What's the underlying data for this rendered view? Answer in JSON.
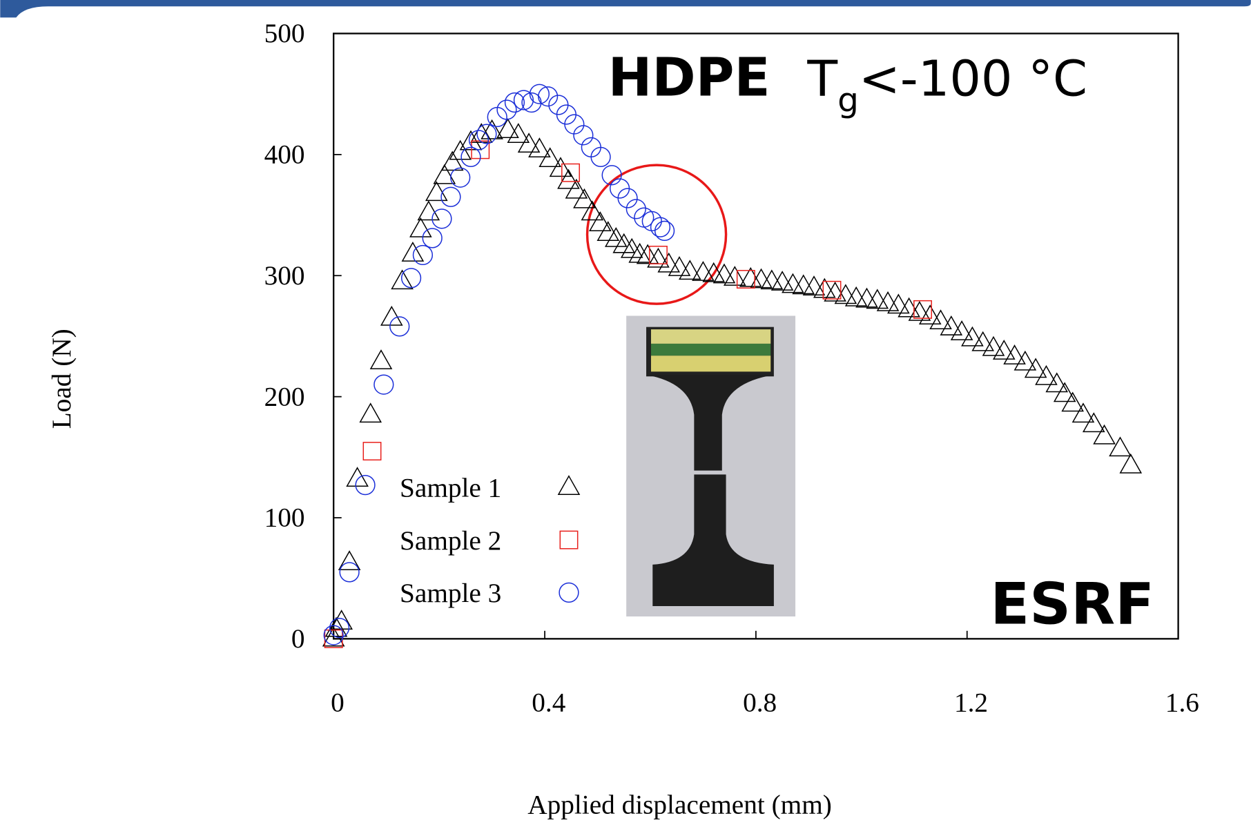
{
  "chart_data": {
    "type": "scatter",
    "title": "HDPE",
    "subtitle_parts": [
      "T",
      "g",
      "<-100 °C"
    ],
    "annotation": "ESRF",
    "x_label": "Applied displacement (mm)",
    "y_label": "Load (N)",
    "xlim": [
      0,
      1.6
    ],
    "ylim": [
      0,
      500
    ],
    "xticks": [
      0,
      0.4,
      0.8,
      1.2,
      1.6
    ],
    "yticks": [
      0,
      100,
      200,
      300,
      400,
      500
    ],
    "legend": "lower-left",
    "series": [
      {
        "name": "Sample 1",
        "color": "#000000",
        "marker": "triangle",
        "x": [
          0,
          0.005,
          0.015,
          0.03,
          0.045,
          0.07,
          0.09,
          0.11,
          0.13,
          0.15,
          0.165,
          0.18,
          0.195,
          0.21,
          0.225,
          0.24,
          0.26,
          0.28,
          0.3,
          0.33,
          0.35,
          0.37,
          0.39,
          0.41,
          0.43,
          0.445,
          0.46,
          0.475,
          0.49,
          0.505,
          0.52,
          0.535,
          0.55,
          0.565,
          0.58,
          0.595,
          0.615,
          0.635,
          0.655,
          0.675,
          0.7,
          0.72,
          0.74,
          0.76,
          0.79,
          0.81,
          0.83,
          0.85,
          0.87,
          0.89,
          0.91,
          0.93,
          0.95,
          0.97,
          0.99,
          1.01,
          1.03,
          1.05,
          1.07,
          1.09,
          1.11,
          1.13,
          1.15,
          1.17,
          1.19,
          1.21,
          1.23,
          1.25,
          1.27,
          1.29,
          1.31,
          1.33,
          1.35,
          1.37,
          1.385,
          1.4,
          1.42,
          1.44,
          1.46,
          1.49,
          1.51
        ],
        "values": [
          0,
          8,
          14,
          63,
          132,
          185,
          229,
          265,
          295,
          318,
          338,
          352,
          368,
          382,
          393,
          402,
          410,
          416,
          419,
          420,
          416,
          408,
          404,
          396,
          388,
          378,
          370,
          362,
          352,
          343,
          335,
          330,
          325,
          321,
          317,
          316,
          313,
          309,
          306,
          303,
          302,
          301,
          300,
          298,
          297,
          296,
          295,
          294,
          292,
          291,
          290,
          288,
          285,
          283,
          281,
          280,
          279,
          277,
          275,
          272,
          269,
          266,
          262,
          257,
          253,
          248,
          244,
          240,
          237,
          233,
          228,
          222,
          216,
          210,
          202,
          194,
          185,
          177,
          167,
          157,
          143
        ]
      },
      {
        "name": "Sample 2",
        "color": "#e8201c",
        "marker": "square",
        "x": [
          0,
          0.073,
          0.278,
          0.449,
          0.615,
          0.781,
          0.944,
          1.116
        ],
        "values": [
          0,
          155,
          404,
          385,
          317,
          297,
          288,
          272
        ]
      },
      {
        "name": "Sample 3",
        "color": "#1a2ed8",
        "marker": "circle",
        "x": [
          0,
          0.011,
          0.03,
          0.06,
          0.095,
          0.125,
          0.147,
          0.169,
          0.187,
          0.205,
          0.222,
          0.24,
          0.26,
          0.275,
          0.29,
          0.31,
          0.328,
          0.343,
          0.36,
          0.375,
          0.39,
          0.406,
          0.426,
          0.441,
          0.456,
          0.473,
          0.488,
          0.506,
          0.527,
          0.542,
          0.557,
          0.573,
          0.588,
          0.603,
          0.619,
          0.627
        ],
        "values": [
          3,
          9,
          55,
          127,
          210,
          258,
          298,
          317,
          331,
          347,
          365,
          381,
          398,
          412,
          417,
          431,
          437,
          443,
          445,
          443,
          450,
          448,
          441,
          433,
          425,
          416,
          406,
          398,
          383,
          372,
          364,
          355,
          348,
          345,
          340,
          337
        ]
      }
    ]
  }
}
